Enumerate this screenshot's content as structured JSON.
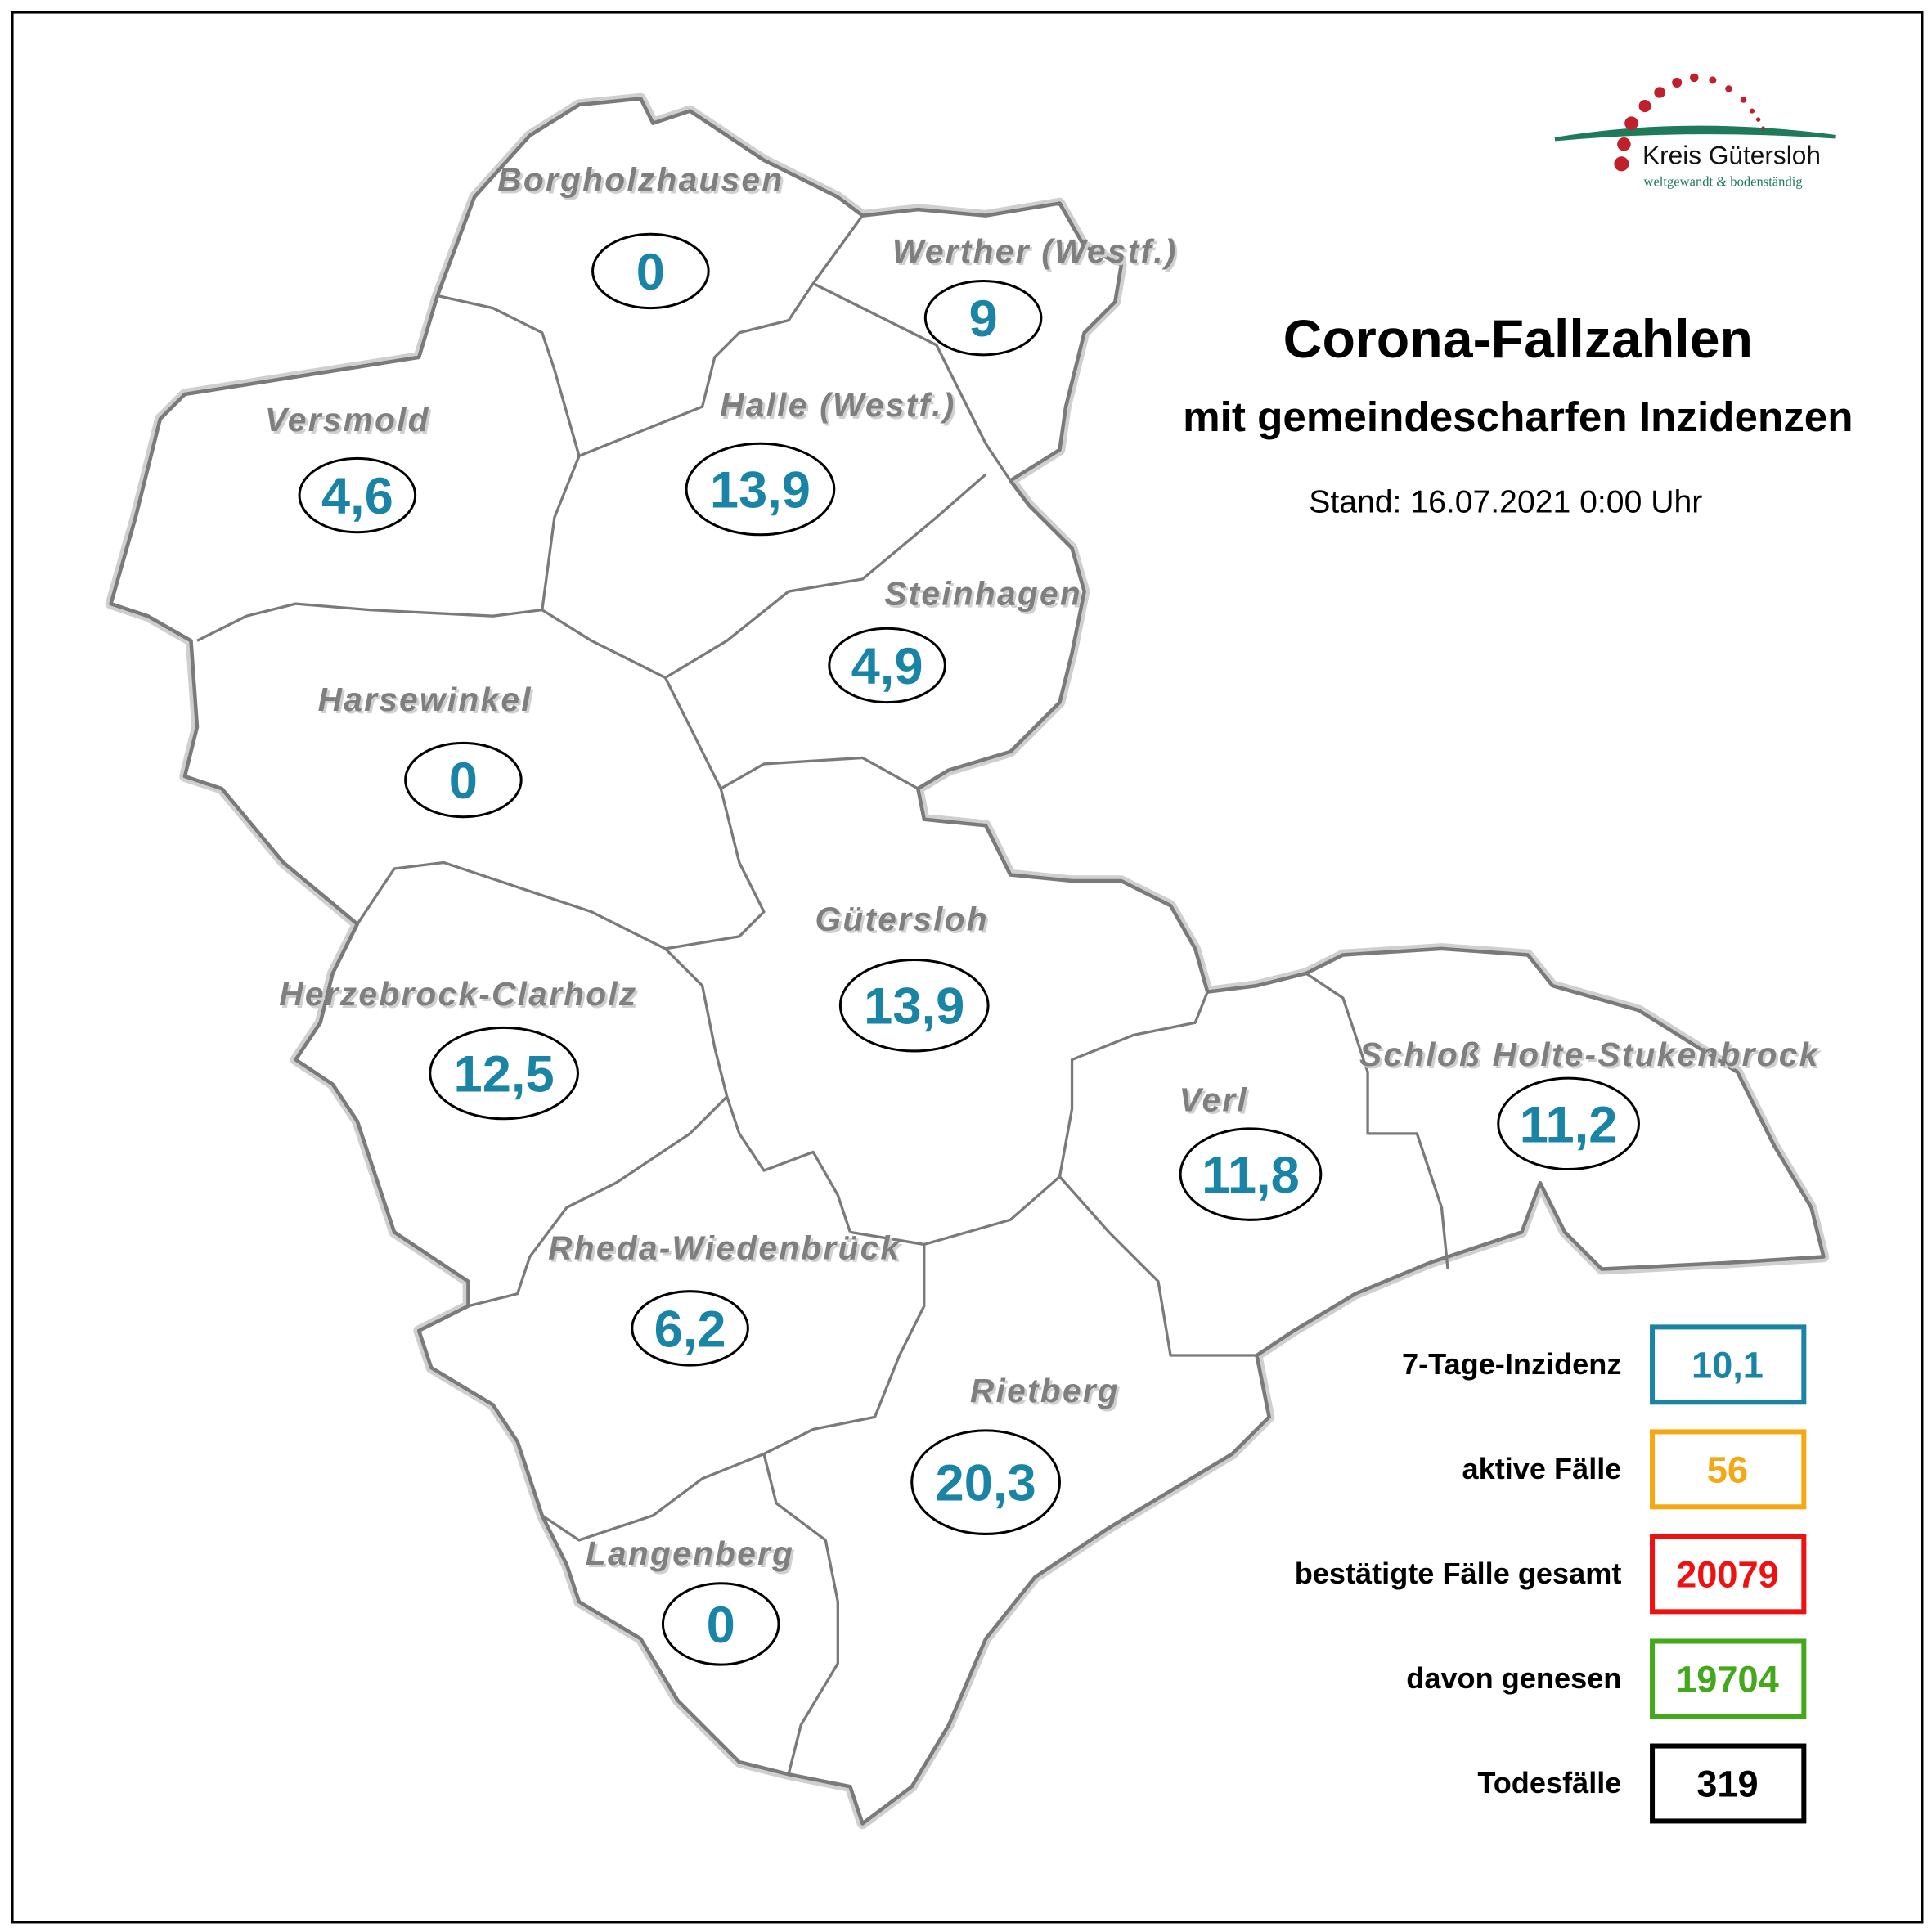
{
  "title": "Corona-Fallzahlen",
  "subtitle": "mit gemeindescharfen Inzidenzen",
  "stand": "Stand: 16.07.2021 0:00 Uhr",
  "logo": {
    "name": "Kreis Gütersloh",
    "tagline": "weltgewandt & bodenständig",
    "colors": {
      "dots": "#c0202b",
      "arc": "#1f7a5a"
    }
  },
  "value_color": "#1a84a6",
  "municipalities": [
    {
      "name": "Borgholzhausen",
      "incidence": "0"
    },
    {
      "name": "Werther (Westf.)",
      "incidence": "9"
    },
    {
      "name": "Versmold",
      "incidence": "4,6"
    },
    {
      "name": "Halle (Westf.)",
      "incidence": "13,9"
    },
    {
      "name": "Steinhagen",
      "incidence": "4,9"
    },
    {
      "name": "Harsewinkel",
      "incidence": "0"
    },
    {
      "name": "Gütersloh",
      "incidence": "13,9"
    },
    {
      "name": "Herzebrock-Clarholz",
      "incidence": "12,5"
    },
    {
      "name": "Verl",
      "incidence": "11,8"
    },
    {
      "name": "Schloß Holte-Stukenbrock",
      "incidence": "11,2"
    },
    {
      "name": "Rheda-Wiedenbrück",
      "incidence": "6,2"
    },
    {
      "name": "Rietberg",
      "incidence": "20,3"
    },
    {
      "name": "Langenberg",
      "incidence": "0"
    }
  ],
  "legend": [
    {
      "label": "7-Tage-Inzidenz",
      "value": "10,1",
      "color": "#1a84a6"
    },
    {
      "label": "aktive Fälle",
      "value": "56",
      "color": "#f5a811"
    },
    {
      "label": "bestätigte Fälle gesamt",
      "value": "20079",
      "color": "#ee1111"
    },
    {
      "label": "davon genesen",
      "value": "19704",
      "color": "#44a81c"
    },
    {
      "label": "Todesfälle",
      "value": "319",
      "color": "#000000"
    }
  ]
}
